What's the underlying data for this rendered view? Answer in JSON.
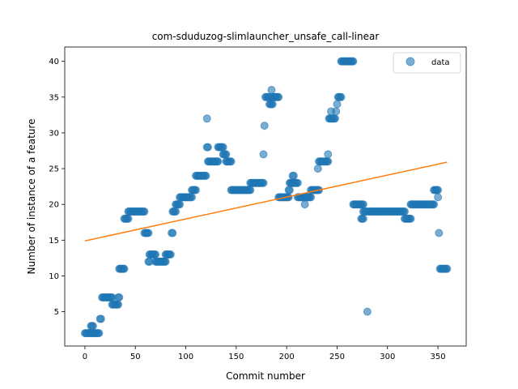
{
  "chart_data": {
    "type": "scatter",
    "title": "com-sduduzog-slimlauncher_unsafe_call-linear",
    "xlabel": "Commit number",
    "ylabel": "Number of instance of a feature",
    "xlim": [
      -20,
      378
    ],
    "ylim": [
      0.2,
      42
    ],
    "xticks": [
      0,
      50,
      100,
      150,
      200,
      250,
      300,
      350
    ],
    "yticks": [
      5,
      10,
      15,
      20,
      25,
      30,
      35,
      40
    ],
    "grid": false,
    "legend": {
      "position": "top-right",
      "entries": [
        "data"
      ]
    },
    "colors": {
      "points": "#1f77b4",
      "fit": "#ff7f0e"
    },
    "fit_line": {
      "x": [
        0,
        359
      ],
      "y": [
        14.9,
        25.9
      ]
    },
    "segments": [
      [
        0,
        2,
        11,
        2
      ],
      [
        6,
        3,
        8,
        3
      ],
      [
        12,
        2,
        14,
        2
      ],
      [
        15,
        4,
        16,
        4
      ],
      [
        17,
        7,
        27,
        7
      ],
      [
        27,
        6,
        33,
        6
      ],
      [
        33,
        7,
        34,
        7
      ],
      [
        34,
        11,
        39,
        11
      ],
      [
        39,
        18,
        43,
        18
      ],
      [
        43,
        19,
        59,
        19
      ],
      [
        59,
        16,
        63,
        16
      ],
      [
        63,
        12,
        64,
        12
      ],
      [
        64,
        13,
        70,
        13
      ],
      [
        70,
        12,
        80,
        12
      ],
      [
        80,
        13,
        85,
        13
      ],
      [
        86,
        16,
        87,
        16
      ],
      [
        87,
        19,
        90,
        19
      ],
      [
        90,
        20,
        94,
        20
      ],
      [
        94,
        21,
        106,
        21
      ],
      [
        106,
        22,
        110,
        22
      ],
      [
        110,
        24,
        120,
        24
      ],
      [
        121,
        32,
        121,
        32
      ],
      [
        121,
        28,
        122,
        28
      ],
      [
        122,
        26,
        132,
        26
      ],
      [
        132,
        28,
        137,
        28
      ],
      [
        137,
        27,
        140,
        27
      ],
      [
        140,
        26,
        145,
        26
      ],
      [
        145,
        22,
        164,
        22
      ],
      [
        164,
        23,
        177,
        23
      ],
      [
        177,
        27,
        177,
        27
      ],
      [
        178,
        31,
        178,
        31
      ],
      [
        179,
        35,
        183,
        35
      ],
      [
        183,
        34,
        186,
        34
      ],
      [
        185,
        36,
        185,
        36
      ],
      [
        186,
        35,
        192,
        35
      ],
      [
        192,
        21,
        202,
        21
      ],
      [
        202,
        22,
        203,
        22
      ],
      [
        203,
        23,
        206,
        23
      ],
      [
        206,
        24,
        207,
        24
      ],
      [
        207,
        23,
        211,
        23
      ],
      [
        211,
        21,
        218,
        21
      ],
      [
        218,
        20,
        218,
        20
      ],
      [
        219,
        21,
        224,
        21
      ],
      [
        224,
        22,
        232,
        22
      ],
      [
        231,
        25,
        231,
        25
      ],
      [
        232,
        26,
        241,
        26
      ],
      [
        241,
        27,
        241,
        27
      ],
      [
        242,
        32,
        248,
        32
      ],
      [
        244,
        33,
        244,
        33
      ],
      [
        249,
        33,
        249,
        33
      ],
      [
        250,
        34,
        250,
        34
      ],
      [
        251,
        35,
        254,
        35
      ],
      [
        254,
        40,
        266,
        40
      ],
      [
        266,
        20,
        276,
        20
      ],
      [
        274,
        18,
        276,
        18
      ],
      [
        276,
        19,
        279,
        19
      ],
      [
        280,
        5,
        280,
        5
      ],
      [
        281,
        19,
        317,
        19
      ],
      [
        317,
        18,
        323,
        18
      ],
      [
        323,
        20,
        346,
        20
      ],
      [
        346,
        22,
        350,
        22
      ],
      [
        350,
        21,
        350,
        21
      ],
      [
        351,
        16,
        351,
        16
      ],
      [
        352,
        11,
        359,
        11
      ]
    ]
  }
}
